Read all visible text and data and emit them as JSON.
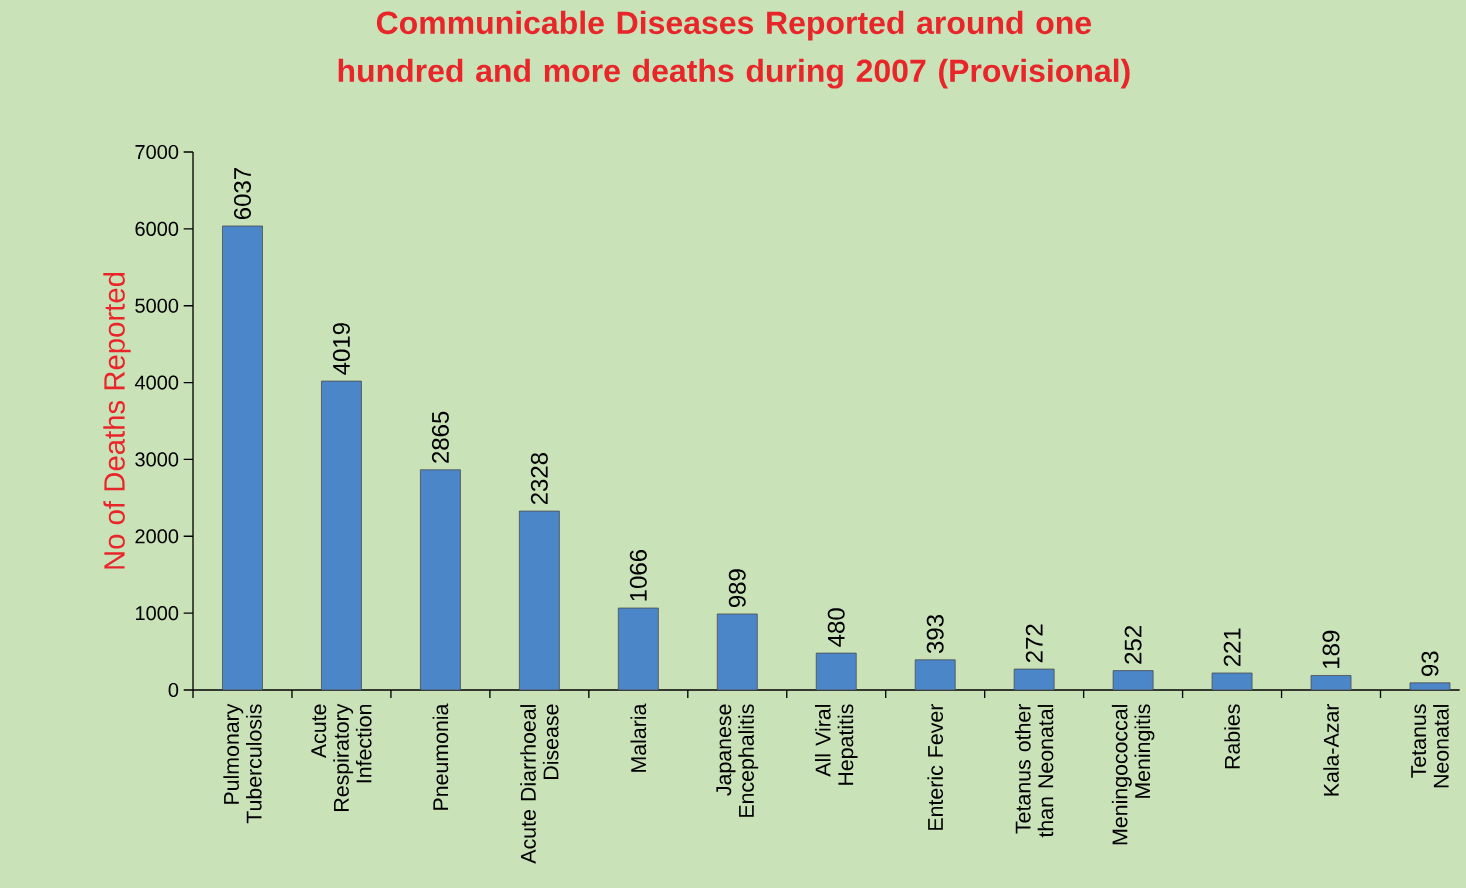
{
  "chart_data": {
    "type": "bar",
    "title": "Communicable Diseases Reported around one hundred and more deaths during 2007 (Provisional)",
    "ylabel": "No of Deaths  Reported",
    "categories": [
      "Pulmonary Tuberculosis",
      "Acute Respiratory Infection",
      "Pneumonia",
      "Acute Diarrhoeal Disease",
      "Malaria",
      "Japanese Encephalitis",
      "All Viral Hepatitis",
      "Enteric Fever",
      "Tetanus other than Neonatal",
      "Meningococcal Meningitis",
      "Rabies",
      "Kala-Azar",
      "Tetanus Neonatal"
    ],
    "values": [
      6037,
      4019,
      2865,
      2328,
      1066,
      989,
      480,
      393,
      272,
      252,
      221,
      189,
      93
    ],
    "color": "#4a86c8",
    "ylim": [
      0,
      7000
    ],
    "yticks": [
      0,
      1000,
      2000,
      3000,
      4000,
      5000,
      6000,
      7000
    ],
    "data_labels": true
  }
}
